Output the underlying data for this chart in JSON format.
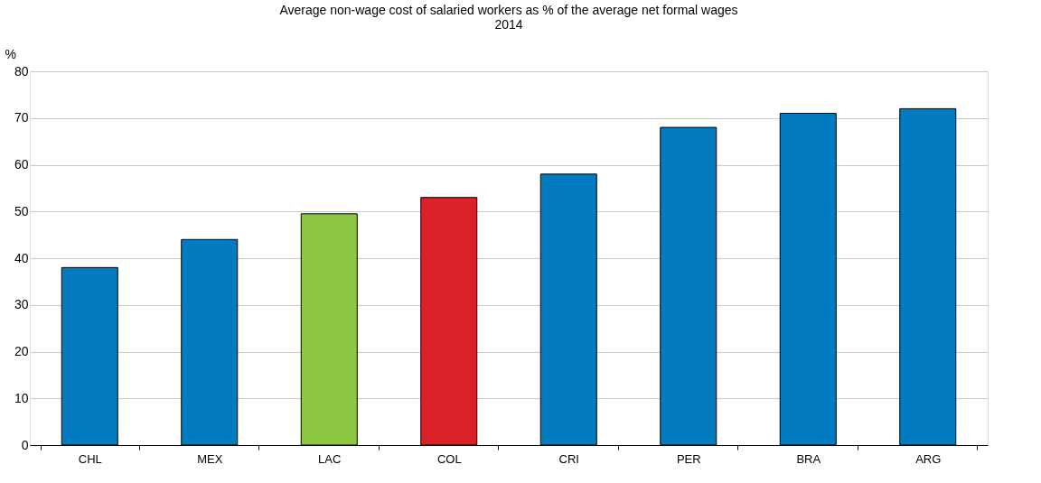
{
  "chart_data": {
    "type": "bar",
    "title": "Average non-wage cost of salaried workers as % of the average net formal wages",
    "subtitle": "2014",
    "ylabel": "%",
    "categories": [
      "CHL",
      "MEX",
      "LAC",
      "COL",
      "CRI",
      "PER",
      "BRA",
      "ARG"
    ],
    "values": [
      38,
      44,
      49.5,
      53,
      58,
      68,
      71,
      72
    ],
    "colors": [
      "#037bc1",
      "#037bc1",
      "#8cc841",
      "#da2128",
      "#037bc1",
      "#037bc1",
      "#037bc1",
      "#037bc1"
    ],
    "ylim": [
      0,
      80
    ],
    "yticks": [
      0,
      10,
      20,
      30,
      40,
      50,
      60,
      70,
      80
    ],
    "grid": "y",
    "legend": false
  }
}
